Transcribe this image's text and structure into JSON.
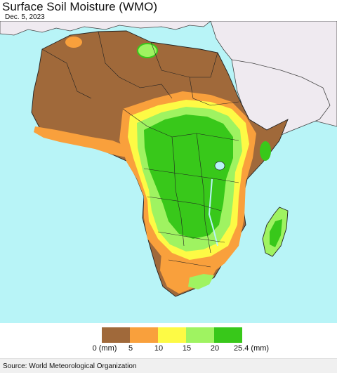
{
  "header": {
    "title": "Surface Soil Moisture (WMO)",
    "date": "Dec. 5, 2023"
  },
  "map": {
    "ocean_color": "#b8f4f7",
    "land_outside_color": "#efeaf0",
    "border_color": "#222222"
  },
  "legend": {
    "unit": "(mm)",
    "colors": [
      "#a0693a",
      "#f9a03c",
      "#fdfa45",
      "#9ff361",
      "#38c81a"
    ],
    "ticks": [
      "0 (mm)",
      "5",
      "10",
      "15",
      "20",
      "25.4 (mm)"
    ]
  },
  "footer": {
    "source": "Source: World Meteorological Organization"
  }
}
